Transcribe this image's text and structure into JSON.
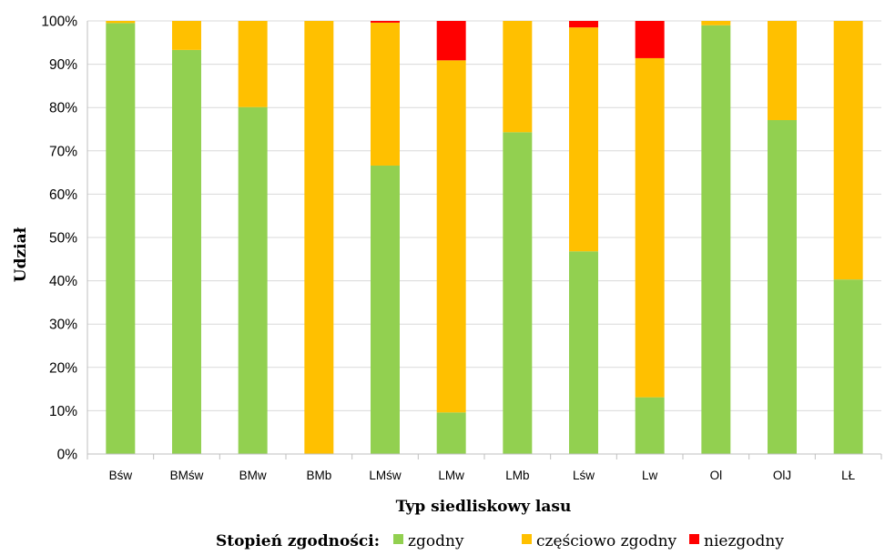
{
  "chart_data": {
    "type": "bar",
    "stacked": true,
    "categories": [
      "Bśw",
      "BMśw",
      "BMw",
      "BMb",
      "LMśw",
      "LMw",
      "LMb",
      "Lśw",
      "Lw",
      "Ol",
      "OlJ",
      "LŁ"
    ],
    "series": [
      {
        "name": "zgodny",
        "color": "#92d050",
        "values": [
          99.5,
          93.3,
          80.1,
          0.0,
          66.6,
          9.6,
          74.3,
          46.8,
          13.1,
          99.0,
          77.1,
          40.3
        ]
      },
      {
        "name": "częściowo zgodny",
        "color": "#ffc000",
        "values": [
          0.5,
          6.7,
          19.9,
          100.0,
          33.0,
          81.3,
          25.7,
          51.7,
          78.3,
          1.0,
          22.9,
          59.7
        ]
      },
      {
        "name": "niezgodny",
        "color": "#ff0000",
        "values": [
          0.0,
          0.0,
          0.0,
          0.0,
          0.4,
          9.1,
          0.0,
          1.5,
          8.6,
          0.0,
          0.0,
          0.0
        ]
      }
    ],
    "y_ticks": [
      "0%",
      "10%",
      "20%",
      "30%",
      "40%",
      "50%",
      "60%",
      "70%",
      "80%",
      "90%",
      "100%"
    ],
    "ylim": [
      0,
      100
    ],
    "xlabel": "Typ siedliskowy lasu",
    "ylabel": "Udział",
    "legend_title": "Stopień zgodności:",
    "legend_position": "bottom",
    "grid": true,
    "grid_color": "#d9d9d9",
    "axis_color": "#bfbfbf",
    "text_color": "#000000"
  }
}
